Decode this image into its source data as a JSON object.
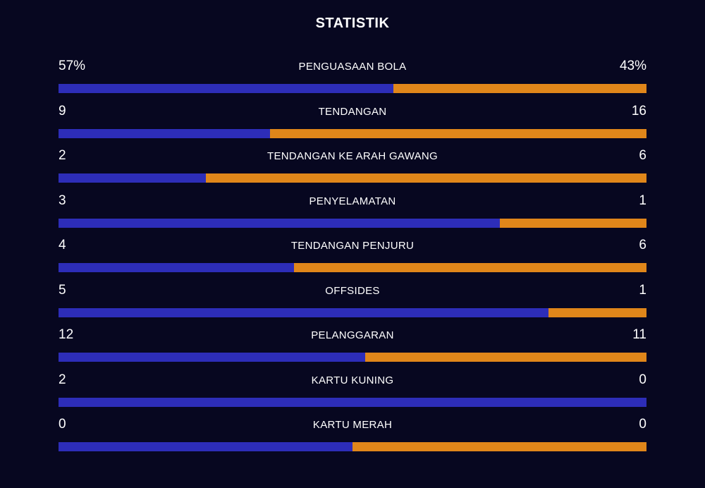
{
  "title": "STATISTIK",
  "colors": {
    "background": "#070720",
    "home": "#2d2db8",
    "away": "#e0861a",
    "text": "#ffffff"
  },
  "stats": [
    {
      "label": "PENGUASAAN BOLA",
      "left": "57%",
      "right": "43%",
      "home_share": 0.57
    },
    {
      "label": "TENDANGAN",
      "left": "9",
      "right": "16",
      "home_share": 0.36
    },
    {
      "label": "TENDANGAN KE ARAH GAWANG",
      "left": "2",
      "right": "6",
      "home_share": 0.25
    },
    {
      "label": "PENYELAMATAN",
      "left": "3",
      "right": "1",
      "home_share": 0.75
    },
    {
      "label": "TENDANGAN PENJURU",
      "left": "4",
      "right": "6",
      "home_share": 0.4
    },
    {
      "label": "OFFSIDES",
      "left": "5",
      "right": "1",
      "home_share": 0.833
    },
    {
      "label": "PELANGGARAN",
      "left": "12",
      "right": "11",
      "home_share": 0.522
    },
    {
      "label": "KARTU KUNING",
      "left": "2",
      "right": "0",
      "home_share": 1.0
    },
    {
      "label": "KARTU MERAH",
      "left": "0",
      "right": "0",
      "home_share": 0.5
    }
  ]
}
